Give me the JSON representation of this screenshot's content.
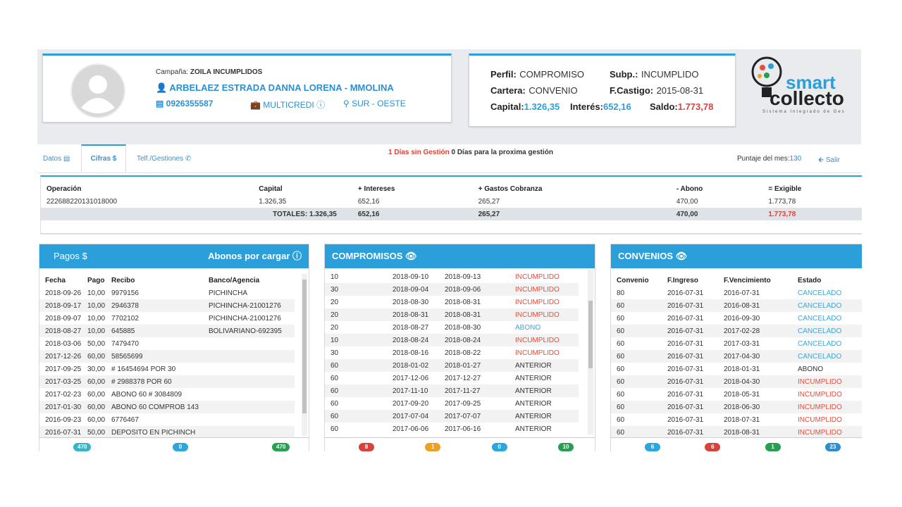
{
  "header": {
    "campaign_label": "Campaña:",
    "campaign": "ZOILA INCUMPLIDOS",
    "name": "ARBELAEZ ESTRADA DANNA LORENA - MMOLINA",
    "id": "0926355587",
    "company": "MULTICREDI",
    "zone": "SUR - OESTE"
  },
  "profile": {
    "perfil_label": "Perfil:",
    "perfil": "COMPROMISO",
    "subp_label": "Subp.:",
    "subp": "INCUMPLIDO",
    "cartera_label": "Cartera:",
    "cartera": "CONVENIO",
    "castigo_label": "F.Castigo:",
    "castigo": "2015-08-31",
    "capital_label": "Capital:",
    "capital": "1.326,35",
    "interes_label": "Interés:",
    "interes": "652,16",
    "saldo_label": "Saldo:",
    "saldo": "1.773,78"
  },
  "logo": {
    "word1": "smart",
    "word2": "collecto",
    "tagline": "Sistema Integrado de Ges"
  },
  "tabs": [
    "Datos",
    "Cifras $",
    "Telf./Gestiones"
  ],
  "status": {
    "sin_gestion": "1 Días sin Gestión",
    "proxima": "0 Días para la proxima gestión",
    "score_label": "Puntaje del mes:",
    "score": 130,
    "exit": "Salir"
  },
  "summary": {
    "headers": [
      "Operación",
      "Capital",
      "+ Intereses",
      "+ Gastos Cobranza",
      "- Abono",
      "= Exigible"
    ],
    "rows": [
      [
        "222688220131018000",
        "1.326,35",
        "652,16",
        "265,27",
        "470,00",
        "1.773,78"
      ]
    ],
    "totals_label": "TOTALES:",
    "totals": [
      "1.326,35",
      "652,16",
      "265,27",
      "470,00",
      "1.773,78"
    ]
  },
  "pagos": {
    "title": "Pagos $",
    "action": "Abonos por cargar",
    "headers": [
      "Fecha",
      "Pago",
      "Recibo",
      "Banco/Agencia"
    ],
    "rows": [
      [
        "2018-09-26",
        "10,00",
        "9979156",
        "PICHINCHA"
      ],
      [
        "2018-09-17",
        "10,00",
        "2946378",
        "PICHINCHA-21001276"
      ],
      [
        "2018-09-07",
        "10,00",
        "7702102",
        "PICHINCHA-21001276"
      ],
      [
        "2018-08-27",
        "10,00",
        "645885",
        "BOLIVARIANO-692395"
      ],
      [
        "2018-03-06",
        "50,00",
        "7479470"
      ],
      [
        "2017-12-26",
        "60,00",
        "58565699"
      ],
      [
        "2017-09-25",
        "30,00",
        "# 16454694 POR 30"
      ],
      [
        "2017-03-25",
        "60,00",
        "# 2988378 POR 60"
      ],
      [
        "2017-02-23",
        "60,00",
        "ABONO 60 # 3084809"
      ],
      [
        "2017-01-30",
        "60,00",
        "ABONO 60 COMPROB 143"
      ],
      [
        "2016-09-23",
        "60,00",
        "6776467"
      ],
      [
        "2016-07-31",
        "50,00",
        "DEPOSITO EN PICHINCH"
      ]
    ],
    "badges": [
      {
        "value": 470,
        "color": "#35b5c6"
      },
      {
        "value": 0,
        "color": "#2ba6de"
      },
      {
        "value": 470,
        "color": "#26a04f"
      }
    ]
  },
  "compromisos": {
    "title": "COMPROMISOS",
    "rows": [
      [
        "10",
        "2018-09-10",
        "2018-09-13",
        "INCUMPLIDO"
      ],
      [
        "30",
        "2018-09-04",
        "2018-09-06",
        "INCUMPLIDO"
      ],
      [
        "20",
        "2018-08-30",
        "2018-08-31",
        "INCUMPLIDO"
      ],
      [
        "20",
        "2018-08-31",
        "2018-08-31",
        "INCUMPLIDO"
      ],
      [
        "20",
        "2018-08-27",
        "2018-08-30",
        "ABONO"
      ],
      [
        "10",
        "2018-08-24",
        "2018-08-24",
        "INCUMPLIDO"
      ],
      [
        "30",
        "2018-08-16",
        "2018-08-22",
        "INCUMPLIDO"
      ],
      [
        "60",
        "2018-01-02",
        "2018-01-27",
        "ANTERIOR"
      ],
      [
        "60",
        "2017-12-06",
        "2017-12-27",
        "ANTERIOR"
      ],
      [
        "60",
        "2017-11-10",
        "2017-11-27",
        "ANTERIOR"
      ],
      [
        "60",
        "2017-09-20",
        "2017-09-25",
        "ANTERIOR"
      ],
      [
        "60",
        "2017-07-04",
        "2017-07-07",
        "ANTERIOR"
      ],
      [
        "60",
        "2017-06-06",
        "2017-06-16",
        "ANTERIOR"
      ]
    ],
    "status_colors": {
      "INCUMPLIDO": "#e74c3c",
      "ABONO": "#3aa6d9",
      "ANTERIOR": "#333333"
    },
    "badges": [
      {
        "value": 8,
        "color": "#d9423a"
      },
      {
        "value": 1,
        "color": "#f0a020"
      },
      {
        "value": 0,
        "color": "#2ba6de"
      },
      {
        "value": 10,
        "color": "#26a04f"
      }
    ]
  },
  "convenios": {
    "title": "CONVENIOS",
    "headers": [
      "Convenio",
      "F.Ingreso",
      "F.Vencimiento",
      "Estado"
    ],
    "rows": [
      [
        "80",
        "2016-07-31",
        "2016-07-31",
        "CANCELADO"
      ],
      [
        "60",
        "2016-07-31",
        "2016-08-31",
        "CANCELADO"
      ],
      [
        "60",
        "2016-07-31",
        "2016-09-30",
        "CANCELADO"
      ],
      [
        "60",
        "2016-07-31",
        "2017-02-28",
        "CANCELADO"
      ],
      [
        "60",
        "2016-07-31",
        "2017-03-31",
        "CANCELADO"
      ],
      [
        "60",
        "2016-07-31",
        "2017-04-30",
        "CANCELADO"
      ],
      [
        "60",
        "2016-07-31",
        "2018-01-31",
        "ABONO"
      ],
      [
        "60",
        "2016-07-31",
        "2018-04-30",
        "INCUMPLIDO"
      ],
      [
        "60",
        "2016-07-31",
        "2018-05-31",
        "INCUMPLIDO"
      ],
      [
        "60",
        "2016-07-31",
        "2018-06-30",
        "INCUMPLIDO"
      ],
      [
        "60",
        "2016-07-31",
        "2018-07-31",
        "INCUMPLIDO"
      ],
      [
        "60",
        "2016-07-31",
        "2018-08-31",
        "INCUMPLIDO"
      ]
    ],
    "status_colors": {
      "CANCELADO": "#3aa6d9",
      "ABONO": "#333333",
      "INCUMPLIDO": "#e74c3c"
    },
    "badges": [
      {
        "value": 6,
        "color": "#2ba6de"
      },
      {
        "value": 6,
        "color": "#d9423a"
      },
      {
        "value": 1,
        "color": "#26a04f"
      },
      {
        "value": 23,
        "color": "#2b8fd0"
      }
    ]
  }
}
